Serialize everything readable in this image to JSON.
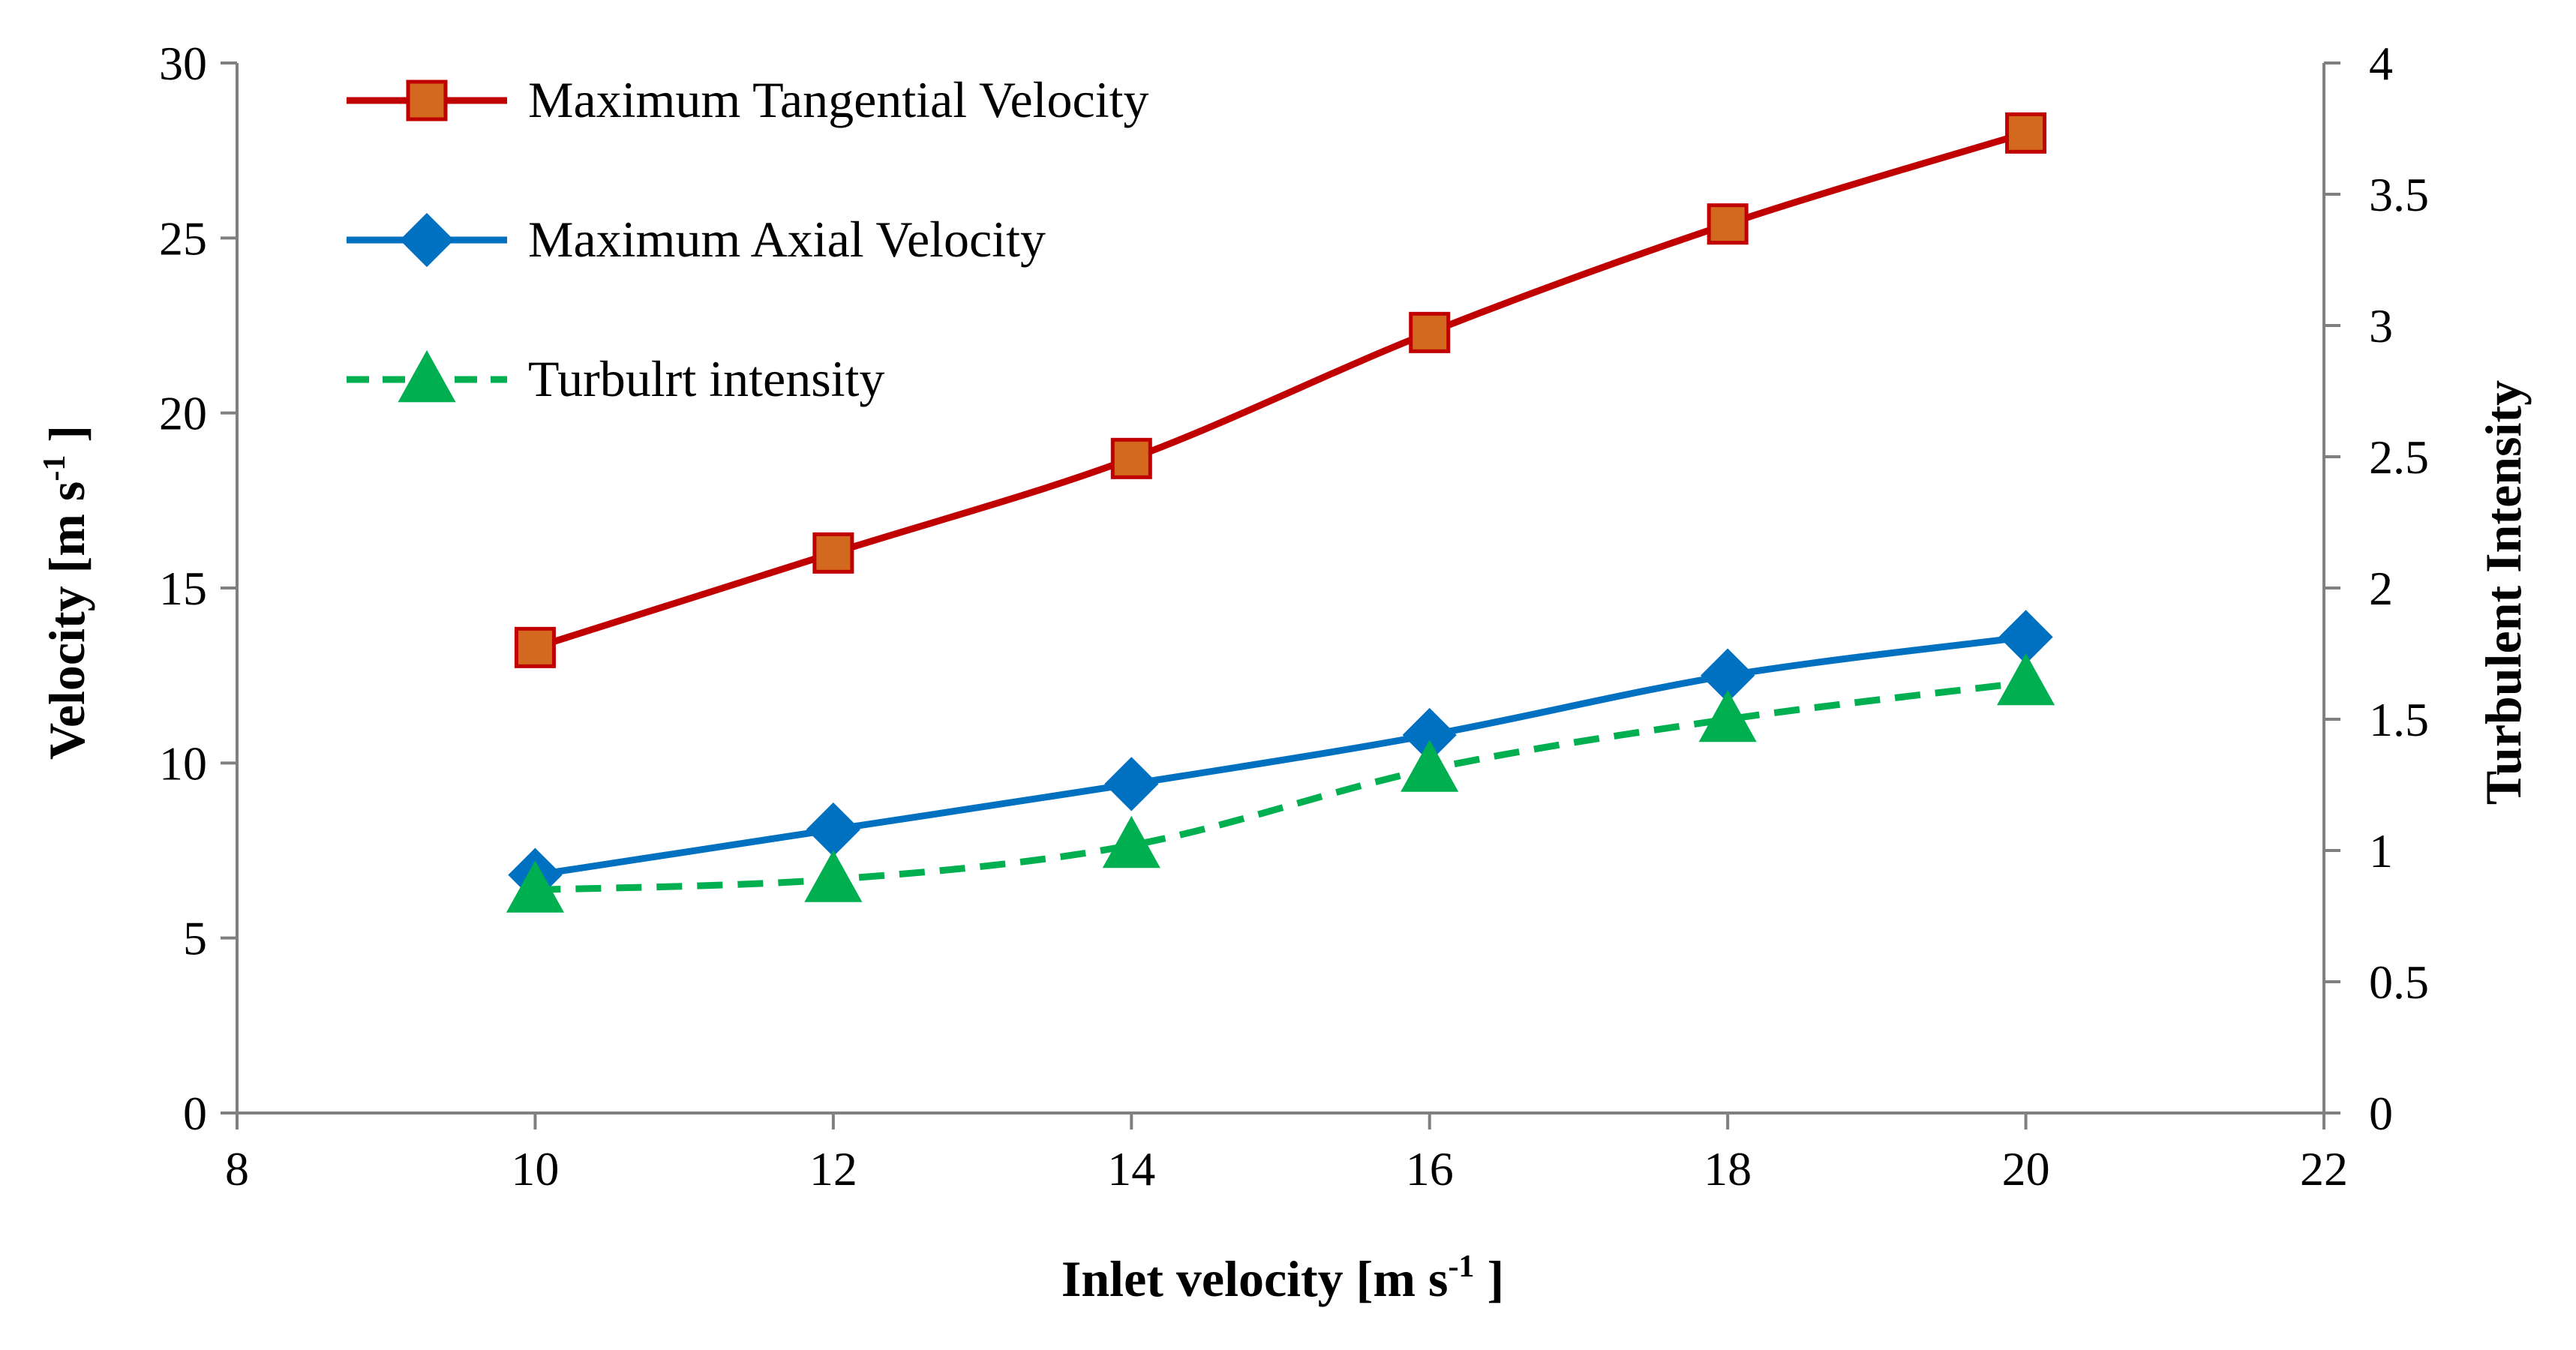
{
  "chart_data": {
    "type": "line",
    "xlabel": {
      "main": "Inlet velocity [m s",
      "sup": "-1",
      "end": " ]"
    },
    "ylabel_left": {
      "main": "Velocity [m s",
      "sup": "-1",
      "end": " ]"
    },
    "ylabel_right": "Turbulent Intensity",
    "xlim": [
      8,
      22
    ],
    "x_ticks": [
      8,
      10,
      12,
      14,
      16,
      18,
      20,
      22
    ],
    "ylim_left": [
      0,
      30
    ],
    "y_ticks_left": [
      0,
      5,
      10,
      15,
      20,
      25,
      30
    ],
    "ylim_right": [
      0,
      4
    ],
    "y_ticks_right": [
      "0",
      "0.5",
      "1",
      "1.5",
      "2",
      "2.5",
      "3",
      "3.5",
      "4"
    ],
    "grid": false,
    "legend_position": "top-left",
    "series": [
      {
        "name": "Maximum Tangential Velocity",
        "axis": "left",
        "marker": "square",
        "line_style": "solid",
        "line_color": "#C00000",
        "marker_fill": "#D2691E",
        "marker_stroke": "#C00000",
        "x": [
          10,
          12,
          14,
          16,
          18,
          20
        ],
        "y": [
          13.3,
          16.0,
          18.7,
          22.3,
          25.4,
          28.0
        ]
      },
      {
        "name": "Maximum Axial Velocity",
        "axis": "left",
        "marker": "diamond",
        "line_style": "solid",
        "line_color": "#0070C0",
        "marker_fill": "#0070C0",
        "marker_stroke": "#0070C0",
        "x": [
          10,
          12,
          14,
          16,
          18,
          20
        ],
        "y": [
          6.8,
          8.1,
          9.4,
          10.8,
          12.5,
          13.6
        ]
      },
      {
        "name": "Turbulrt intensity",
        "axis": "right",
        "marker": "triangle",
        "line_style": "dashed",
        "line_color": "#00B050",
        "marker_fill": "#00B050",
        "marker_stroke": "#00B050",
        "x": [
          10,
          12,
          14,
          16,
          18,
          20
        ],
        "y": [
          0.85,
          0.89,
          1.02,
          1.31,
          1.5,
          1.64
        ]
      }
    ]
  }
}
